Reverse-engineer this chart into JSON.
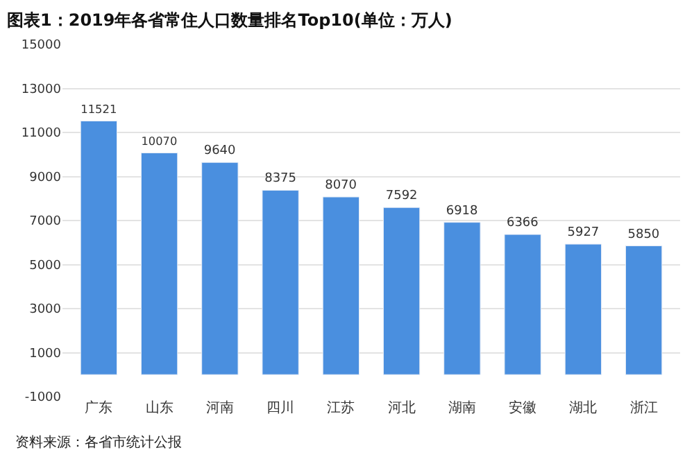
{
  "chart_data": {
    "type": "bar",
    "title": "图表1：2019年各省常住人口数量排名Top10(单位：万人)",
    "categories": [
      "广东",
      "山东",
      "河南",
      "四川",
      "江苏",
      "河北",
      "湖南",
      "安徽",
      "湖北",
      "浙江"
    ],
    "values": [
      11521,
      10070,
      9640,
      8375,
      8070,
      7592,
      6918,
      6366,
      5927,
      5850
    ],
    "color": "#4a8fdf",
    "ylim": [
      -1000,
      15000
    ],
    "yticks": [
      -1000,
      1000,
      3000,
      5000,
      7000,
      9000,
      11000,
      13000,
      15000
    ],
    "grid": "y",
    "data_labels": true,
    "annotations": [
      "资料来源：各省市统计公报"
    ]
  }
}
